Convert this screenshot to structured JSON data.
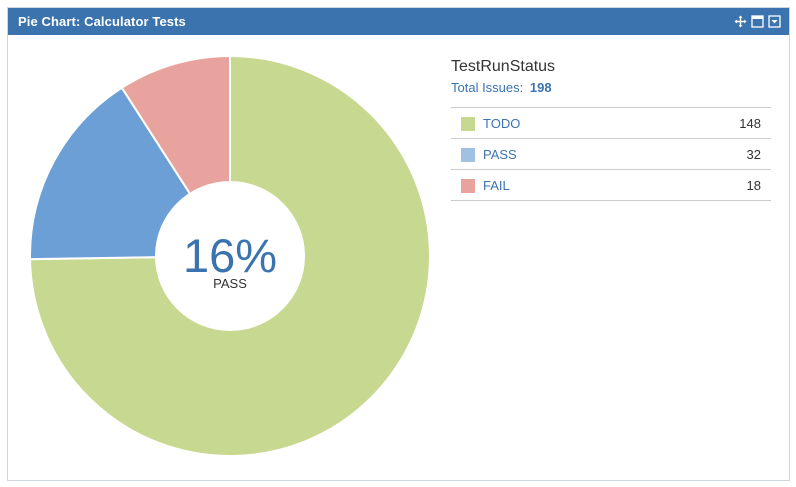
{
  "header": {
    "title": "Pie Chart: Calculator Tests",
    "tools": [
      {
        "name": "move-icon"
      },
      {
        "name": "maximize-icon"
      },
      {
        "name": "menu-dropdown-icon"
      }
    ]
  },
  "legend": {
    "title": "TestRunStatus",
    "total_label": "Total Issues:",
    "total_value": "198"
  },
  "center": {
    "percent": "16%",
    "label": "PASS"
  },
  "colors": {
    "header_bg": "#3b73af",
    "link": "#3b73af"
  },
  "chart_data": {
    "type": "pie",
    "title": "TestRunStatus",
    "categories": [
      "TODO",
      "PASS",
      "FAIL"
    ],
    "values": [
      148,
      32,
      18
    ],
    "colors": [
      "#c7d991",
      "#6c9fd5",
      "#e8a39e"
    ],
    "legend_colors": [
      "#c7d991",
      "#a0c0e4",
      "#e8a39e"
    ],
    "total": 198,
    "highlighted": "PASS",
    "legend_position": "right"
  }
}
